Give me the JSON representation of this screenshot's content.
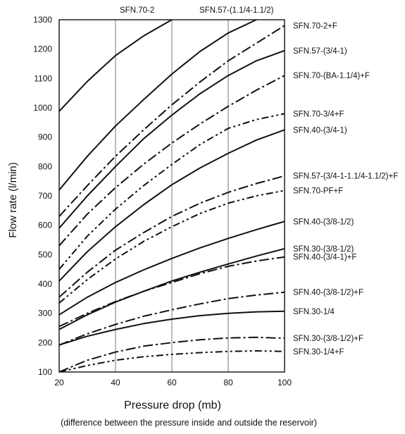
{
  "chart_data": {
    "type": "line",
    "xlabel": "Pressure drop (mb)",
    "xnote": "(difference between the pressure inside and outside the reservoir)",
    "ylabel": "Flow rate (l/min)",
    "xlim": [
      20,
      100
    ],
    "ylim": [
      100,
      1300
    ],
    "xticks": [
      20,
      40,
      60,
      80,
      100
    ],
    "yticks": [
      100,
      200,
      300,
      400,
      500,
      600,
      700,
      800,
      900,
      1000,
      1100,
      1200,
      1300
    ],
    "grid": true,
    "series": [
      {
        "name": "SFN.70-2",
        "style": "solid",
        "label_position": "top",
        "x": [
          20,
          30,
          40,
          50,
          60
        ],
        "y": [
          988,
          1090,
          1178,
          1245,
          1300
        ]
      },
      {
        "name": "SFN.57-(1.1/4-1.1/2)",
        "style": "solid",
        "label_position": "top",
        "x": [
          20,
          30,
          40,
          50,
          60,
          70,
          80,
          90
        ],
        "y": [
          720,
          835,
          938,
          1028,
          1115,
          1192,
          1255,
          1300
        ]
      },
      {
        "name": "SFN.70-2+F",
        "style": "dashdot",
        "label_position": "right",
        "x": [
          20,
          30,
          40,
          50,
          60,
          70,
          80,
          90,
          100
        ],
        "y": [
          630,
          735,
          835,
          925,
          1010,
          1088,
          1160,
          1220,
          1280
        ]
      },
      {
        "name": "SFN.57-(3/4-1)",
        "style": "solid",
        "label_position": "right",
        "x": [
          20,
          30,
          40,
          50,
          60,
          70,
          80,
          90,
          100
        ],
        "y": [
          590,
          700,
          800,
          895,
          975,
          1048,
          1110,
          1160,
          1195
        ]
      },
      {
        "name": "SFN.70-(BA-1.1/4)+F",
        "style": "dashdot",
        "label_position": "right",
        "x": [
          20,
          30,
          40,
          50,
          60,
          70,
          80,
          90,
          100
        ],
        "y": [
          530,
          638,
          728,
          808,
          880,
          945,
          1005,
          1060,
          1110
        ]
      },
      {
        "name": "SFN.70-3/4+F",
        "style": "dashdot2",
        "label_position": "right",
        "x": [
          20,
          30,
          40,
          50,
          60,
          70,
          80,
          90,
          100
        ],
        "y": [
          450,
          563,
          655,
          735,
          807,
          875,
          930,
          960,
          980
        ]
      },
      {
        "name": "SFN.40-(3/4-1)",
        "style": "solid",
        "label_position": "right",
        "x": [
          20,
          30,
          40,
          50,
          60,
          70,
          80,
          90,
          100
        ],
        "y": [
          410,
          510,
          595,
          670,
          738,
          795,
          845,
          890,
          925
        ]
      },
      {
        "name": "SFN.57-(3/4-1-1.1/4-1.1/2)+F",
        "style": "dashdot",
        "label_position": "right",
        "x": [
          20,
          30,
          40,
          50,
          60,
          70,
          80,
          90,
          100
        ],
        "y": [
          355,
          440,
          515,
          575,
          630,
          675,
          712,
          742,
          768
        ]
      },
      {
        "name": "SFN.70-PF+F",
        "style": "dashdot2",
        "label_position": "right",
        "x": [
          20,
          30,
          40,
          50,
          60,
          70,
          80,
          90,
          100
        ],
        "y": [
          335,
          415,
          485,
          545,
          595,
          640,
          675,
          700,
          718
        ]
      },
      {
        "name": "SFN.40-(3/8-1/2)",
        "style": "solid",
        "label_position": "right",
        "x": [
          20,
          30,
          40,
          50,
          60,
          70,
          80,
          90,
          100
        ],
        "y": [
          295,
          355,
          405,
          448,
          487,
          523,
          555,
          585,
          613
        ]
      },
      {
        "name": "SFN.30-(3/8-1/2)",
        "style": "solid",
        "label_position": "right",
        "x": [
          20,
          30,
          40,
          50,
          60,
          70,
          80,
          90,
          100
        ],
        "y": [
          245,
          295,
          338,
          375,
          410,
          440,
          468,
          495,
          520
        ]
      },
      {
        "name": "SFN.40-(3/4-1)+F",
        "style": "dashdot",
        "label_position": "right",
        "x": [
          20,
          30,
          40,
          50,
          60,
          70,
          80,
          90,
          100
        ],
        "y": [
          255,
          300,
          340,
          375,
          405,
          435,
          460,
          478,
          492
        ]
      },
      {
        "name": "SFN.40-(3/8-1/2)+F",
        "style": "dashdot",
        "label_position": "right",
        "x": [
          20,
          30,
          40,
          50,
          60,
          70,
          80,
          90,
          100
        ],
        "y": [
          192,
          230,
          262,
          290,
          312,
          332,
          350,
          362,
          372
        ]
      },
      {
        "name": "SFN.30-1/4",
        "style": "solid",
        "label_position": "right",
        "x": [
          20,
          30,
          40,
          50,
          60,
          70,
          80,
          90,
          100
        ],
        "y": [
          192,
          222,
          245,
          265,
          280,
          292,
          300,
          305,
          307
        ]
      },
      {
        "name": "SFN.30-(3/8-1/2)+F",
        "style": "dashdot",
        "label_position": "right",
        "x": [
          20,
          30,
          40,
          50,
          60,
          70,
          80,
          90,
          100
        ],
        "y": [
          100,
          140,
          168,
          188,
          200,
          210,
          216,
          218,
          215
        ]
      },
      {
        "name": "SFN.30-1/4+F",
        "style": "dashdot2",
        "label_position": "right",
        "x": [
          20,
          30,
          40,
          50,
          60,
          70,
          80,
          90,
          100
        ],
        "y": [
          100,
          122,
          140,
          152,
          160,
          166,
          170,
          172,
          170
        ]
      }
    ]
  }
}
